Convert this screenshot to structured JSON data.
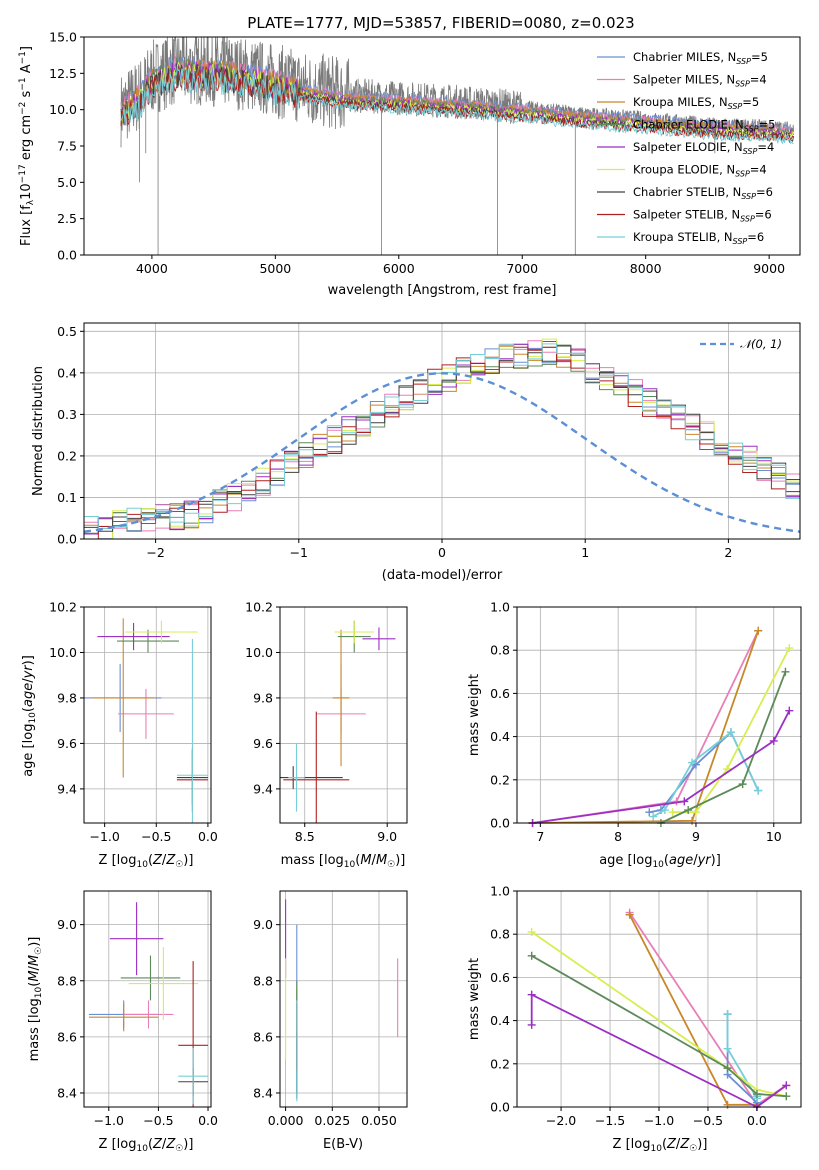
{
  "colors": {
    "c0": "#6a8fd4",
    "c1": "#e87fb8",
    "c2": "#c8882a",
    "c3": "#5d8a5a",
    "c4": "#9c2fc4",
    "c5": "#d8ee50",
    "c6": "#404040",
    "c7": "#b02020",
    "c8": "#76cfd8",
    "ref": "#5b8fd6"
  },
  "chart_data": [
    {
      "id": "spectrum",
      "type": "line",
      "title": "PLATE=1777, MJD=53857, FIBERID=0080, z=0.023",
      "xlabel": "wavelength [Angstrom, rest frame]",
      "ylabel": "Flux [f_λ 10^-17 erg cm^-2 s^-1 A^-1]",
      "xlim": [
        3450,
        9250
      ],
      "ylim": [
        0,
        15
      ],
      "xticks": [
        4000,
        5000,
        6000,
        7000,
        8000,
        9000
      ],
      "yticks": [
        0.0,
        2.5,
        5.0,
        7.5,
        10.0,
        12.5,
        15.0
      ],
      "legend_position": "top-right",
      "series": [
        {
          "name": "Chabrier MILES, N_SSP=5",
          "legend_main": "Chabrier MILES, N",
          "legend_sub": "SSP",
          "legend_tail": "=5",
          "color_key": "c0"
        },
        {
          "name": "Salpeter MILES, N_SSP=4",
          "legend_main": "Salpeter MILES, N",
          "legend_sub": "SSP",
          "legend_tail": "=4",
          "color_key": "c1"
        },
        {
          "name": "Kroupa MILES, N_SSP=5",
          "legend_main": "Kroupa MILES, N",
          "legend_sub": "SSP",
          "legend_tail": "=5",
          "color_key": "c2"
        },
        {
          "name": "Chabrier ELODIE, N_SSP=5",
          "legend_main": "Chabrier ELODIE, N",
          "legend_sub": "SSP",
          "legend_tail": "=5",
          "color_key": "c3"
        },
        {
          "name": "Salpeter ELODIE, N_SSP=4",
          "legend_main": "Salpeter ELODIE, N",
          "legend_sub": "SSP",
          "legend_tail": "=4",
          "color_key": "c4"
        },
        {
          "name": "Kroupa ELODIE, N_SSP=4",
          "legend_main": "Kroupa ELODIE, N",
          "legend_sub": "SSP",
          "legend_tail": "=4",
          "color_key": "c5"
        },
        {
          "name": "Chabrier STELIB, N_SSP=6",
          "legend_main": "Chabrier STELIB, N",
          "legend_sub": "SSP",
          "legend_tail": "=6",
          "color_key": "c6"
        },
        {
          "name": "Salpeter STELIB, N_SSP=6",
          "legend_main": "Salpeter STELIB, N",
          "legend_sub": "SSP",
          "legend_tail": "=6",
          "color_key": "c7"
        },
        {
          "name": "Kroupa STELIB, N_SSP=6",
          "legend_main": "Kroupa STELIB, N",
          "legend_sub": "SSP",
          "legend_tail": "=6",
          "color_key": "c8"
        }
      ],
      "continuum": {
        "wavelength": [
          3750,
          3900,
          4000,
          4200,
          4500,
          4800,
          5000,
          5300,
          5600,
          6000,
          6400,
          6800,
          7200,
          7500,
          8000,
          8500,
          9000,
          9200
        ],
        "flux": [
          10.0,
          11.0,
          12.2,
          12.9,
          12.8,
          12.4,
          12.0,
          11.4,
          11.0,
          10.8,
          10.6,
          10.3,
          10.0,
          9.7,
          9.4,
          9.0,
          8.8,
          8.7
        ]
      },
      "observed_wavelength_range": [
        3750,
        9200
      ]
    },
    {
      "id": "residuals",
      "type": "histogram",
      "xlabel": "(data-model)/error",
      "ylabel": "Normed distribution",
      "xlim": [
        -2.5,
        2.5
      ],
      "ylim": [
        0,
        0.52
      ],
      "xticks": [
        -2,
        -1,
        0,
        1,
        2
      ],
      "yticks": [
        0.0,
        0.1,
        0.2,
        0.3,
        0.4,
        0.5
      ],
      "reference_label": "𝒩(0, 1)",
      "bin_width": 0.1,
      "base_density": [
        0.022,
        0.03,
        0.035,
        0.04,
        0.045,
        0.05,
        0.055,
        0.06,
        0.07,
        0.085,
        0.1,
        0.12,
        0.14,
        0.16,
        0.18,
        0.2,
        0.22,
        0.24,
        0.26,
        0.28,
        0.3,
        0.32,
        0.34,
        0.36,
        0.375,
        0.39,
        0.405,
        0.42,
        0.43,
        0.44,
        0.445,
        0.45,
        0.45,
        0.44,
        0.425,
        0.41,
        0.39,
        0.37,
        0.35,
        0.33,
        0.31,
        0.29,
        0.27,
        0.25,
        0.23,
        0.21,
        0.19,
        0.17,
        0.15,
        0.13
      ]
    },
    {
      "id": "age-vs-Z",
      "type": "scatter",
      "xlabel": "Z [log10(Z/Z☉)]",
      "ylabel": "age [log10(age/yr)]",
      "xlim": [
        -1.2,
        0.03
      ],
      "ylim": [
        9.25,
        10.2
      ],
      "xticks": [
        -1.0,
        -0.5,
        0.0
      ],
      "yticks": [
        9.4,
        9.6,
        9.8,
        10.0,
        10.2
      ],
      "points": [
        {
          "color": "c0",
          "x": -0.85,
          "xerr": 0.4,
          "y": 9.8,
          "yerr": 0.15
        },
        {
          "color": "c1",
          "x": -0.6,
          "xerr": 0.27,
          "y": 9.73,
          "yerr": 0.11
        },
        {
          "color": "c2",
          "x": -0.82,
          "xerr": 0.3,
          "y": 9.8,
          "yerr": 0.35
        },
        {
          "color": "c3",
          "x": -0.58,
          "xerr": 0.3,
          "y": 10.05,
          "yerr": 0.05
        },
        {
          "color": "c4",
          "x": -0.72,
          "xerr": 0.35,
          "y": 10.07,
          "yerr": 0.06
        },
        {
          "color": "c5",
          "x": -0.45,
          "xerr": 0.35,
          "y": 10.09,
          "yerr": 0.05
        },
        {
          "color": "c6",
          "x": -0.15,
          "xerr": 0.15,
          "y": 9.45,
          "yerr": 0.12
        },
        {
          "color": "c7",
          "x": -0.15,
          "xerr": 0.15,
          "y": 9.44,
          "yerr": 0.14
        },
        {
          "color": "c8",
          "x": -0.15,
          "xerr": 0.15,
          "y": 9.46,
          "yerr": 0.6
        }
      ]
    },
    {
      "id": "age-vs-mass",
      "type": "scatter",
      "xlabel": "mass [log10(M/M☉)]",
      "ylabel": "",
      "xlim": [
        8.35,
        9.12
      ],
      "ylim": [
        9.25,
        10.2
      ],
      "xticks": [
        8.5,
        9.0
      ],
      "yticks": [
        9.4,
        9.6,
        9.8,
        10.0,
        10.2
      ],
      "points": [
        {
          "color": "c0",
          "x": 8.72,
          "xerr": 0.05,
          "y": 9.8,
          "yerr": 0.15
        },
        {
          "color": "c1",
          "x": 8.72,
          "xerr": 0.15,
          "y": 9.73,
          "yerr": 0.11
        },
        {
          "color": "c2",
          "x": 8.72,
          "xerr": 0.05,
          "y": 9.8,
          "yerr": 0.3
        },
        {
          "color": "c3",
          "x": 8.8,
          "xerr": 0.1,
          "y": 10.07,
          "yerr": 0.07
        },
        {
          "color": "c4",
          "x": 8.95,
          "xerr": 0.1,
          "y": 10.06,
          "yerr": 0.05
        },
        {
          "color": "c5",
          "x": 8.8,
          "xerr": 0.12,
          "y": 10.09,
          "yerr": 0.05
        },
        {
          "color": "c6",
          "x": 8.43,
          "xerr": 0.3,
          "y": 9.45,
          "yerr": 0.05
        },
        {
          "color": "c7",
          "x": 8.57,
          "xerr": 0.2,
          "y": 9.44,
          "yerr": 0.3
        },
        {
          "color": "c8",
          "x": 8.45,
          "xerr": 0.05,
          "y": 9.45,
          "yerr": 0.15
        }
      ]
    },
    {
      "id": "weight-vs-age",
      "type": "line",
      "xlabel": "age [log10(age/yr)]",
      "ylabel": "mass weight",
      "xlim": [
        6.7,
        10.35
      ],
      "ylim": [
        0,
        1
      ],
      "xticks": [
        7,
        8,
        9,
        10
      ],
      "yticks": [
        0.0,
        0.2,
        0.4,
        0.6,
        0.8,
        1.0
      ],
      "series": [
        {
          "color": "c1",
          "x": [
            6.9,
            8.75,
            9.8
          ],
          "y": [
            0.0,
            0.1,
            0.89
          ]
        },
        {
          "color": "c2",
          "x": [
            6.9,
            8.95,
            9.8
          ],
          "y": [
            0.0,
            0.01,
            0.89
          ]
        },
        {
          "color": "c0",
          "x": [
            8.4,
            8.55,
            9.0,
            9.45,
            9.8
          ],
          "y": [
            0.05,
            0.06,
            0.27,
            0.42,
            0.15
          ]
        },
        {
          "color": "c8",
          "x": [
            8.45,
            8.6,
            8.95,
            9.45,
            9.8
          ],
          "y": [
            0.03,
            0.06,
            0.28,
            0.42,
            0.15
          ]
        },
        {
          "color": "c5",
          "x": [
            8.7,
            9.0,
            9.4,
            10.2
          ],
          "y": [
            0.05,
            0.05,
            0.25,
            0.81
          ]
        },
        {
          "color": "c3",
          "x": [
            8.55,
            8.9,
            9.6,
            10.15
          ],
          "y": [
            0.0,
            0.06,
            0.18,
            0.7
          ]
        },
        {
          "color": "c4",
          "x": [
            6.9,
            8.85,
            10.0,
            10.2
          ],
          "y": [
            0.0,
            0.1,
            0.38,
            0.52
          ]
        }
      ]
    },
    {
      "id": "mass-vs-Z",
      "type": "scatter",
      "xlabel": "Z [log10(Z/Z☉)]",
      "ylabel": "mass [log10(M/M☉)]",
      "xlim": [
        -1.25,
        0.03
      ],
      "ylim": [
        8.35,
        9.12
      ],
      "xticks": [
        -1.0,
        -0.5,
        0.0
      ],
      "yticks": [
        8.4,
        8.6,
        8.8,
        9.0
      ],
      "points": [
        {
          "color": "c0",
          "x": -0.85,
          "xerr": 0.35,
          "y": 8.68,
          "yerr": 0.05
        },
        {
          "color": "c1",
          "x": -0.6,
          "xerr": 0.25,
          "y": 8.68,
          "yerr": 0.05
        },
        {
          "color": "c2",
          "x": -0.85,
          "xerr": 0.35,
          "y": 8.67,
          "yerr": 0.05
        },
        {
          "color": "c3",
          "x": -0.58,
          "xerr": 0.3,
          "y": 8.81,
          "yerr": 0.08
        },
        {
          "color": "c4",
          "x": -0.72,
          "xerr": 0.27,
          "y": 8.95,
          "yerr": 0.13
        },
        {
          "color": "c5",
          "x": -0.45,
          "xerr": 0.35,
          "y": 8.79,
          "yerr": 0.13
        },
        {
          "color": "c6",
          "x": -0.15,
          "xerr": 0.15,
          "y": 8.44,
          "yerr": 0.05
        },
        {
          "color": "c7",
          "x": -0.15,
          "xerr": 0.15,
          "y": 8.57,
          "yerr": 0.3
        },
        {
          "color": "c8",
          "x": -0.15,
          "xerr": 0.15,
          "y": 8.46,
          "yerr": 0.1
        }
      ]
    },
    {
      "id": "mass-vs-EBV",
      "type": "scatter",
      "xlabel": "E(B-V)",
      "ylabel": "",
      "xlim": [
        -0.003,
        0.065
      ],
      "ylim": [
        8.35,
        9.12
      ],
      "xticks": [
        0.0,
        0.025,
        0.05
      ],
      "yticks": [
        8.4,
        8.6,
        8.8,
        9.0
      ],
      "points": [
        {
          "color": "c0",
          "x": 0.006,
          "xerr": 0,
          "y": 8.7,
          "yerr": 0.3
        },
        {
          "color": "c1",
          "x": 0.06,
          "xerr": 0,
          "y": 8.74,
          "yerr": 0.14
        },
        {
          "color": "c2",
          "x": 0.006,
          "xerr": 0,
          "y": 8.69,
          "yerr": 0.08
        },
        {
          "color": "c3",
          "x": 0.006,
          "xerr": 0,
          "y": 8.6,
          "yerr": 0.2
        },
        {
          "color": "c4",
          "x": 0.0,
          "xerr": 0,
          "y": 8.95,
          "yerr": 0.14
        },
        {
          "color": "c5",
          "x": 0.0,
          "xerr": 0,
          "y": 8.7,
          "yerr": 0.18
        },
        {
          "color": "c6",
          "x": 0.006,
          "xerr": 0,
          "y": 8.5,
          "yerr": 0.12
        },
        {
          "color": "c7",
          "x": 0.006,
          "xerr": 0,
          "y": 8.6,
          "yerr": 0.12
        },
        {
          "color": "c8",
          "x": 0.006,
          "xerr": 0,
          "y": 8.55,
          "yerr": 0.18
        }
      ]
    },
    {
      "id": "weight-vs-Z",
      "type": "line",
      "xlabel": "Z [log10(Z/Z☉)]",
      "ylabel": "mass weight",
      "xlim": [
        -2.45,
        0.45
      ],
      "ylim": [
        0,
        1
      ],
      "xticks": [
        -2.0,
        -1.5,
        -1.0,
        -0.5,
        0.0
      ],
      "yticks": [
        0.0,
        0.2,
        0.4,
        0.6,
        0.8,
        1.0
      ],
      "series": [
        {
          "color": "c1",
          "x": [
            -1.3,
            0.0,
            0.3
          ],
          "y": [
            0.9,
            0.01,
            0.1
          ]
        },
        {
          "color": "c2",
          "x": [
            -1.3,
            -0.3,
            0.0
          ],
          "y": [
            0.89,
            0.01,
            0.01
          ]
        },
        {
          "color": "c0",
          "x": [
            -0.3,
            -0.3,
            0.0,
            0.0
          ],
          "y": [
            0.43,
            0.15,
            0.02,
            0.05
          ]
        },
        {
          "color": "c8",
          "x": [
            -0.3,
            -0.3,
            0.0,
            0.0
          ],
          "y": [
            0.43,
            0.27,
            0.04,
            0.05
          ]
        },
        {
          "color": "c5",
          "x": [
            -2.3,
            -0.3,
            0.0,
            0.3
          ],
          "y": [
            0.81,
            0.18,
            0.08,
            0.05
          ]
        },
        {
          "color": "c3",
          "x": [
            -2.3,
            -0.3,
            0.0,
            0.3
          ],
          "y": [
            0.7,
            0.18,
            0.06,
            0.05
          ]
        },
        {
          "color": "c4",
          "x": [
            -2.3,
            -2.3,
            0.0,
            0.3
          ],
          "y": [
            0.38,
            0.52,
            0.0,
            0.1
          ]
        }
      ]
    }
  ]
}
